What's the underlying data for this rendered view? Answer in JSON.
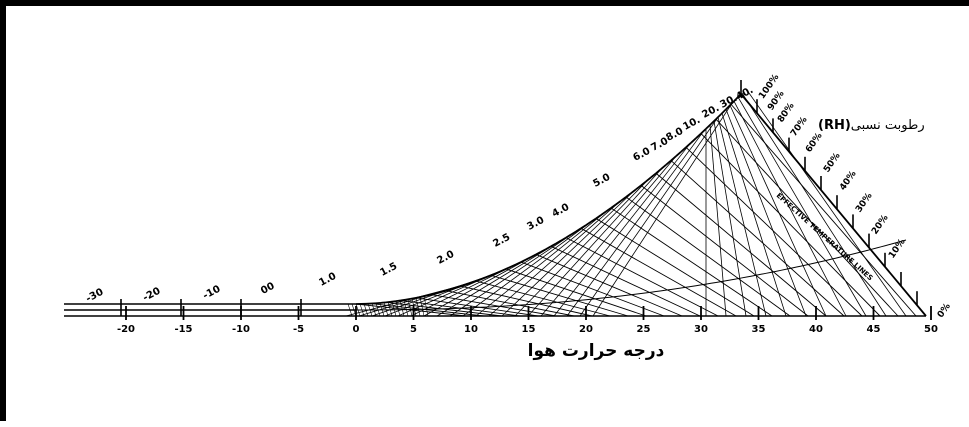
{
  "diagram": {
    "axis_title": "درجه حرارت هوا",
    "rh_title_text": "رطوبت نسبی",
    "rh_title_abbr": "(RH)",
    "effective_temperature_label": "EFFECTIVE TEMPERATURE LINES",
    "bottom_ticks": [
      "-20",
      "-15",
      "-10",
      "-5",
      "0",
      "5",
      "10",
      "15",
      "20",
      "25",
      "30",
      "35",
      "40",
      "45",
      "50"
    ],
    "wind_labels": [
      "-30",
      "-20",
      "-10",
      "00",
      "1.0",
      "1.5",
      "2.0",
      "2.5",
      "3.0",
      "4.0",
      "5.0",
      "6.0",
      "7.0",
      "8.0",
      "10.",
      "20.",
      "30.",
      "40."
    ],
    "rh_labels": [
      "100%",
      "90%",
      "80%",
      "70%",
      "60%",
      "50%",
      "40%",
      "30%",
      "20%",
      "10%",
      "0%"
    ]
  }
}
